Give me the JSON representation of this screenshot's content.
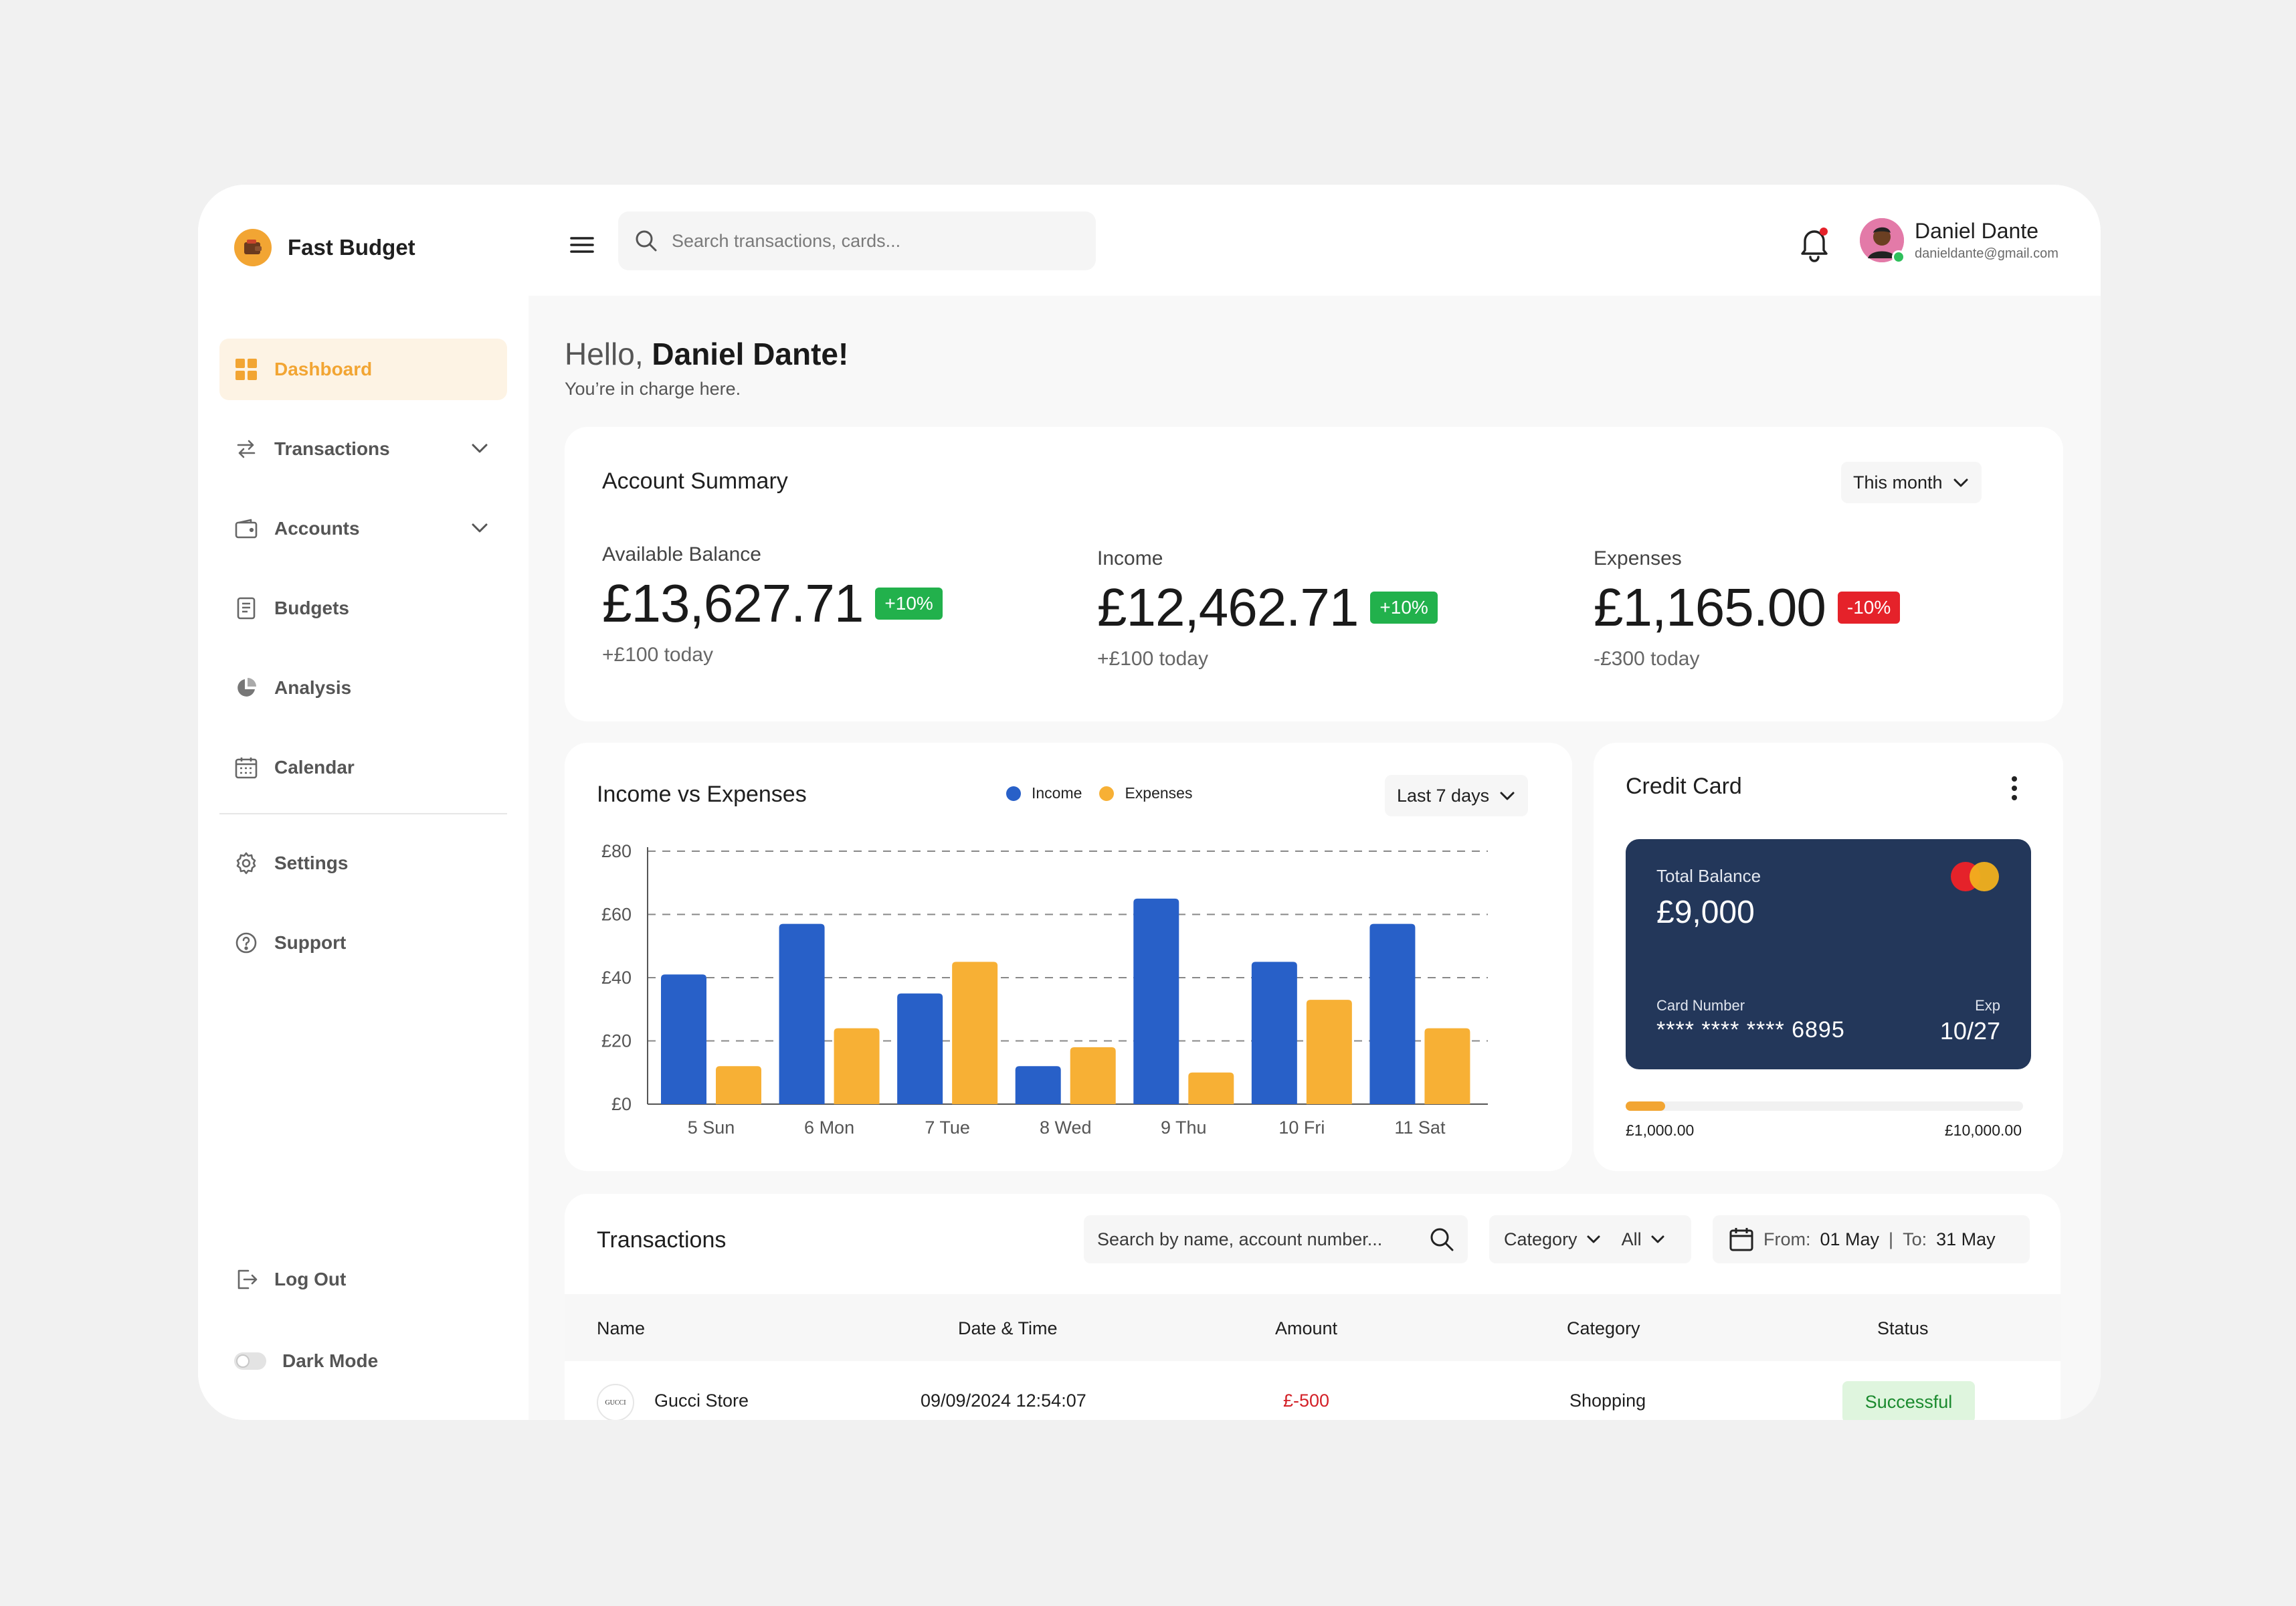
{
  "app": {
    "name": "Fast Budget"
  },
  "sidebar": {
    "items": [
      {
        "label": "Dashboard"
      },
      {
        "label": "Transactions"
      },
      {
        "label": "Accounts"
      },
      {
        "label": "Budgets"
      },
      {
        "label": "Analysis"
      },
      {
        "label": "Calendar"
      },
      {
        "label": "Settings"
      },
      {
        "label": "Support"
      }
    ],
    "logout": "Log Out",
    "dark_mode": "Dark Mode"
  },
  "header": {
    "search_placeholder": "Search transactions, cards...",
    "user_name": "Daniel Dante",
    "user_email": "danieldante@gmail.com"
  },
  "greeting": {
    "hello": "Hello,",
    "name": "Daniel Dante!",
    "subtitle": "You’re in charge here."
  },
  "summary": {
    "title": "Account Summary",
    "period": "This month",
    "metrics": [
      {
        "label": "Available Balance",
        "value": "£13,627.71",
        "change": "+10%",
        "sub": "+£100 today"
      },
      {
        "label": "Income",
        "value": "£12,462.71",
        "change": "+10%",
        "sub": "+£100 today"
      },
      {
        "label": "Expenses",
        "value": "£1,165.00",
        "change": "-10%",
        "sub": "-£300 today"
      }
    ]
  },
  "income_vs_expenses": {
    "title": "Income vs Expenses",
    "period": "Last 7 days",
    "legend": {
      "income": "Income",
      "expenses": "Expenses"
    }
  },
  "chart_data": {
    "type": "bar",
    "categories": [
      "5 Sun",
      "6 Mon",
      "7 Tue",
      "8 Wed",
      "9 Thu",
      "10 Fri",
      "11 Sat"
    ],
    "series": [
      {
        "name": "Income",
        "values": [
          41,
          57,
          35,
          12,
          65,
          45,
          57
        ],
        "color": "#2860c8"
      },
      {
        "name": "Expenses",
        "values": [
          12,
          24,
          45,
          18,
          10,
          33,
          24
        ],
        "color": "#f7b035"
      }
    ],
    "yticks": [
      "£0",
      "£20",
      "£40",
      "£60",
      "£80"
    ],
    "ylim": [
      0,
      80
    ],
    "grid": true,
    "legend": "top-center"
  },
  "credit_card": {
    "title": "Credit Card",
    "total_balance_label": "Total Balance",
    "total_balance": "£9,000",
    "card_number_label": "Card Number",
    "card_number": "**** **** **** 6895",
    "exp_label": "Exp",
    "exp": "10/27",
    "spent_fraction": 0.1,
    "range_min": "£1,000.00",
    "range_max": "£10,000.00"
  },
  "transactions": {
    "title": "Transactions",
    "search_placeholder": "Search by name, account number...",
    "category_label": "Category",
    "category_value": "All",
    "from_label": "From:",
    "from_value": "01 May",
    "separator": "|",
    "to_label": "To:",
    "to_value": "31 May",
    "columns": [
      "Name",
      "Date & Time",
      "Amount",
      "Category",
      "Status"
    ],
    "rows": [
      {
        "logo_text": "GUCCI",
        "name": "Gucci Store",
        "datetime": "09/09/2024 12:54:07",
        "amount": "£-500",
        "category": "Shopping",
        "status": "Successful"
      }
    ]
  },
  "colors": {
    "accent": "#f2a533",
    "income": "#2860c8",
    "expenses": "#f7b035",
    "card": "#23375a",
    "positive": "#22b14c",
    "negative": "#e5222a"
  }
}
